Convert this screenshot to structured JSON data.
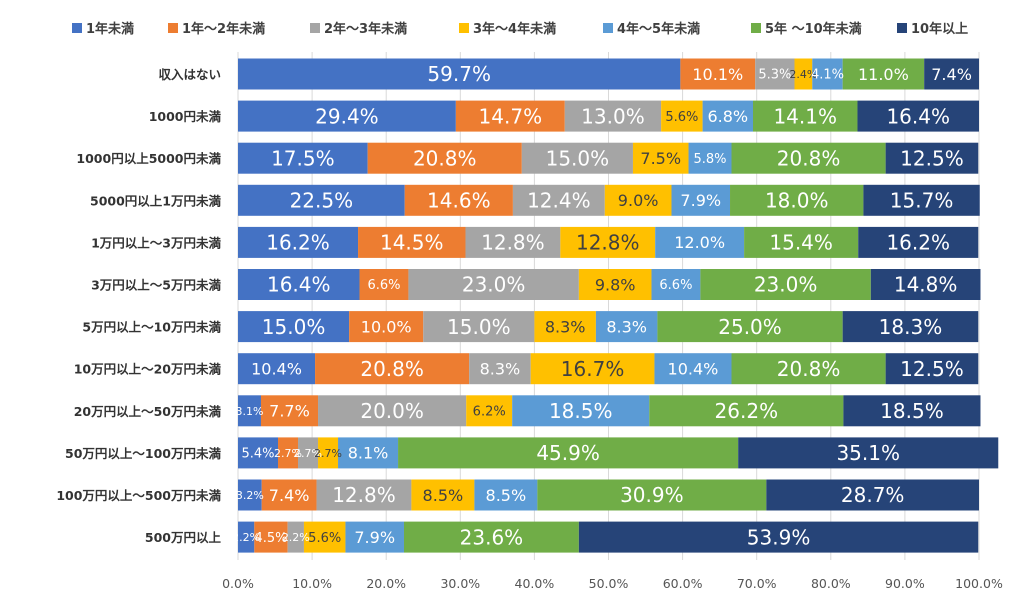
{
  "chart_data": {
    "type": "bar",
    "orientation": "horizontal",
    "stacked": "percent",
    "title": "",
    "xlabel": "",
    "ylabel": "",
    "xlim": [
      0,
      100
    ],
    "x_ticks": [
      "0.0%",
      "10.0%",
      "20.0%",
      "30.0%",
      "40.0%",
      "50.0%",
      "60.0%",
      "70.0%",
      "80.0%",
      "90.0%",
      "100.0%"
    ],
    "legend_position": "top",
    "grid": true,
    "categories": [
      "収入はない",
      "1000円未満",
      "1000円以上5000円未満",
      "5000円以上1万円未満",
      "1万円以上～3万円未満",
      "3万円以上～5万円未満",
      "5万円以上～10万円未満",
      "10万円以上～20万円未満",
      "20万円以上～50万円未満",
      "50万円以上～100万円未満",
      "100万円以上～500万円未満",
      "500万円以上"
    ],
    "series": [
      {
        "name": "1年未満",
        "color": "#4472C4",
        "values": [
          59.7,
          29.4,
          17.5,
          22.5,
          16.2,
          16.4,
          15.0,
          10.4,
          3.1,
          5.4,
          3.2,
          2.2
        ]
      },
      {
        "name": "1年～2年未満",
        "color": "#ED7D31",
        "values": [
          10.1,
          14.7,
          20.8,
          14.6,
          14.5,
          6.6,
          10.0,
          20.8,
          7.7,
          2.7,
          7.4,
          4.5
        ]
      },
      {
        "name": "2年～3年未満",
        "color": "#A5A5A5",
        "values": [
          5.3,
          13.0,
          15.0,
          12.4,
          12.8,
          23.0,
          15.0,
          8.3,
          20.0,
          2.7,
          12.8,
          2.2
        ]
      },
      {
        "name": "3年～4年未満",
        "color": "#FFC000",
        "values": [
          2.4,
          5.6,
          7.5,
          9.0,
          12.8,
          9.8,
          8.3,
          16.7,
          6.2,
          2.7,
          8.5,
          5.6
        ]
      },
      {
        "name": "4年～5年未満",
        "color": "#5B9BD5",
        "values": [
          4.1,
          6.8,
          5.8,
          7.9,
          12.0,
          6.6,
          8.3,
          10.4,
          18.5,
          8.1,
          8.5,
          7.9
        ]
      },
      {
        "name": "5年 ～10年未満",
        "color": "#70AD47",
        "values": [
          11.0,
          14.1,
          20.8,
          18.0,
          15.4,
          23.0,
          25.0,
          20.8,
          26.2,
          45.9,
          30.9,
          23.6
        ]
      },
      {
        "name": "10年以上",
        "color": "#264478",
        "values": [
          7.4,
          16.4,
          12.5,
          15.7,
          16.2,
          14.8,
          18.3,
          12.5,
          18.5,
          35.1,
          28.7,
          53.9
        ]
      }
    ]
  }
}
